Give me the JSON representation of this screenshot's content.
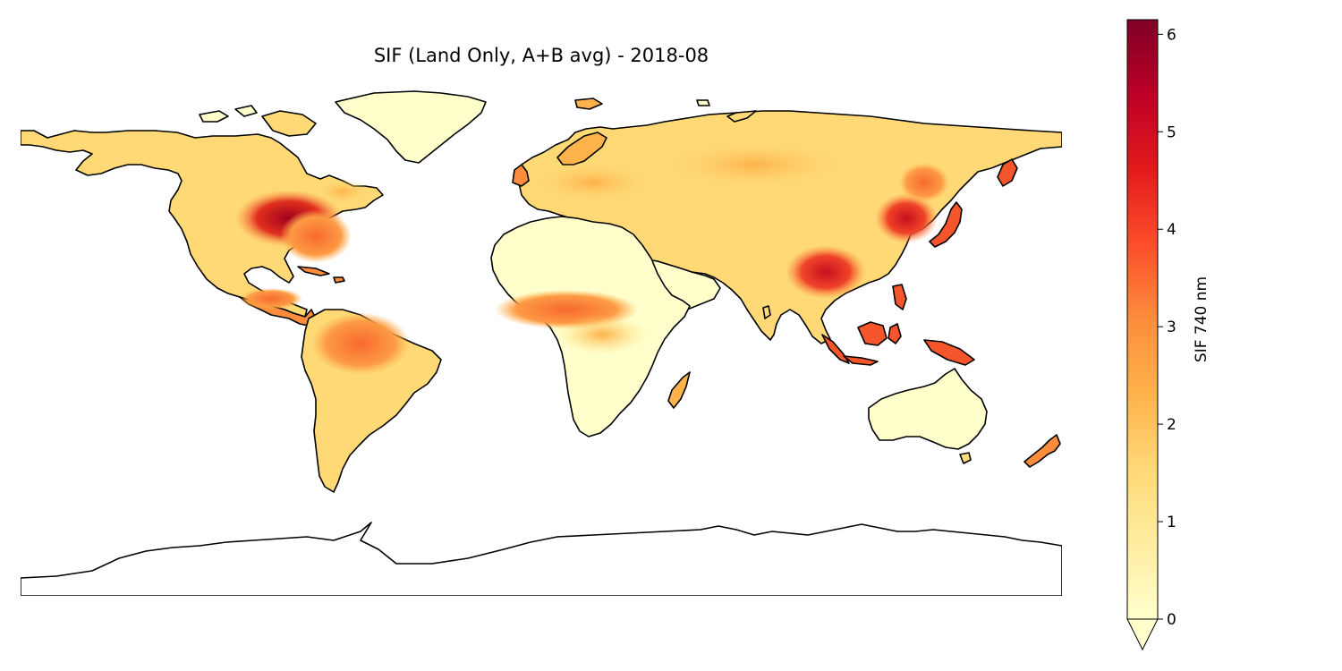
{
  "title": "SIF (Land Only, A+B avg) - 2018-08",
  "colorbar": {
    "label": "SIF 740 nm",
    "min": 0,
    "max": 6.15,
    "ticks": [
      "0",
      "1",
      "2",
      "3",
      "4",
      "5",
      "6"
    ],
    "tick_values": [
      0,
      1,
      2,
      3,
      4,
      5,
      6
    ],
    "extend": "min",
    "colormap": "YlOrRd",
    "colors": [
      "#ffffcc",
      "#ffeda0",
      "#fed976",
      "#feb24c",
      "#fd8d3c",
      "#fc4e2a",
      "#e31a1c",
      "#bd0026",
      "#800026"
    ]
  },
  "map": {
    "projection": "PlateCarree",
    "land_only": true,
    "coastlines": true,
    "month": "2018-08"
  }
}
